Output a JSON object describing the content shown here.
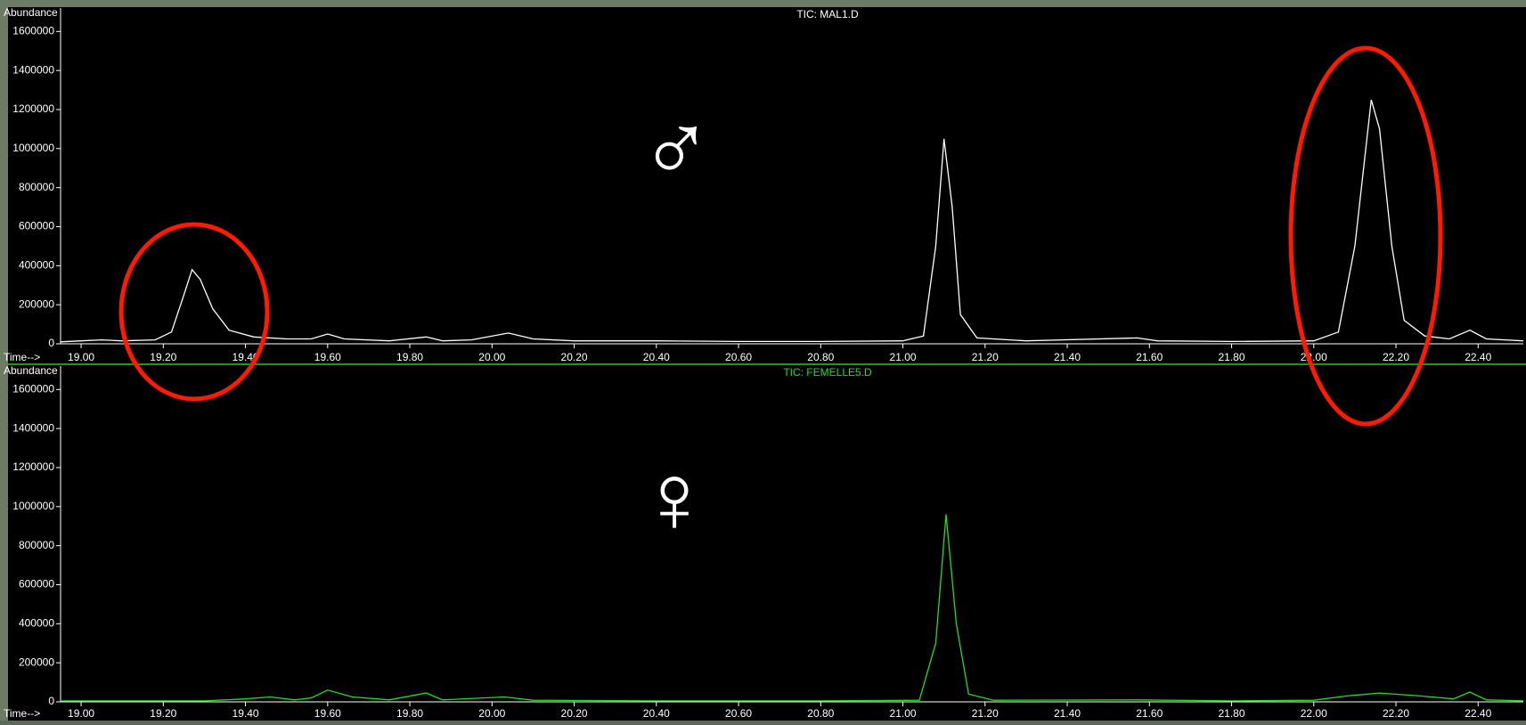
{
  "chart_data": [
    {
      "type": "line",
      "title": "TIC: MAL1.D",
      "y_label": "Abundance",
      "x_label": "Time-->",
      "annotation": "♂",
      "xlim": [
        18.95,
        22.51
      ],
      "ylim": [
        0,
        1720000
      ],
      "xticks": [
        {
          "value": 19,
          "label": "19.00"
        },
        {
          "value": 19.2,
          "label": "19.20"
        },
        {
          "value": 19.4,
          "label": "19.40"
        },
        {
          "value": 19.6,
          "label": "19.60"
        },
        {
          "value": 19.8,
          "label": "19.80"
        },
        {
          "value": 20,
          "label": "20.00"
        },
        {
          "value": 20.2,
          "label": "20.20"
        },
        {
          "value": 20.4,
          "label": "20.40"
        },
        {
          "value": 20.6,
          "label": "20.60"
        },
        {
          "value": 20.8,
          "label": "20.80"
        },
        {
          "value": 21,
          "label": "21.00"
        },
        {
          "value": 21.2,
          "label": "21.20"
        },
        {
          "value": 21.4,
          "label": "21.40"
        },
        {
          "value": 21.6,
          "label": "21.60"
        },
        {
          "value": 21.8,
          "label": "21.80"
        },
        {
          "value": 22,
          "label": "22.00"
        },
        {
          "value": 22.2,
          "label": "22.20"
        },
        {
          "value": 22.4,
          "label": "22.40"
        }
      ],
      "yticks": [
        0,
        200000,
        400000,
        600000,
        800000,
        1000000,
        1200000,
        1400000,
        1600000
      ],
      "series": [
        {
          "color": "#ffffff",
          "x": [
            18.95,
            19.0,
            19.05,
            19.1,
            19.18,
            19.22,
            19.25,
            19.27,
            19.29,
            19.32,
            19.36,
            19.42,
            19.5,
            19.56,
            19.6,
            19.64,
            19.75,
            19.84,
            19.88,
            19.95,
            20.04,
            20.1,
            20.2,
            20.4,
            20.6,
            20.8,
            21.0,
            21.05,
            21.08,
            21.1,
            21.12,
            21.14,
            21.18,
            21.3,
            21.57,
            21.62,
            21.8,
            22.0,
            22.06,
            22.1,
            22.14,
            22.16,
            22.19,
            22.22,
            22.27,
            22.33,
            22.38,
            22.42,
            22.51
          ],
          "values": [
            10000,
            15000,
            20000,
            15000,
            20000,
            60000,
            250000,
            380000,
            330000,
            180000,
            70000,
            35000,
            25000,
            25000,
            50000,
            25000,
            15000,
            35000,
            15000,
            20000,
            55000,
            25000,
            15000,
            15000,
            12000,
            12000,
            15000,
            40000,
            500000,
            1050000,
            700000,
            150000,
            30000,
            15000,
            30000,
            15000,
            12000,
            15000,
            60000,
            500000,
            1250000,
            1100000,
            500000,
            120000,
            40000,
            25000,
            70000,
            25000,
            15000
          ]
        }
      ]
    },
    {
      "type": "line",
      "title": "TIC: FEMELLE5.D",
      "y_label": "Abundance",
      "x_label": "Time-->",
      "annotation": "♀",
      "xlim": [
        18.95,
        22.51
      ],
      "ylim": [
        0,
        1720000
      ],
      "xticks": [
        {
          "value": 19,
          "label": "19.00"
        },
        {
          "value": 19.2,
          "label": "19.20"
        },
        {
          "value": 19.4,
          "label": "19.40"
        },
        {
          "value": 19.6,
          "label": "19.60"
        },
        {
          "value": 19.8,
          "label": "19.80"
        },
        {
          "value": 20,
          "label": "20.00"
        },
        {
          "value": 20.2,
          "label": "20.20"
        },
        {
          "value": 20.4,
          "label": "20.40"
        },
        {
          "value": 20.6,
          "label": "20.60"
        },
        {
          "value": 20.8,
          "label": "20.80"
        },
        {
          "value": 21,
          "label": "21.00"
        },
        {
          "value": 21.2,
          "label": "21.20"
        },
        {
          "value": 21.4,
          "label": "21.40"
        },
        {
          "value": 21.6,
          "label": "21.60"
        },
        {
          "value": 21.8,
          "label": "21.80"
        },
        {
          "value": 22,
          "label": "22.00"
        },
        {
          "value": 22.2,
          "label": "22.20"
        },
        {
          "value": 22.4,
          "label": "22.40"
        }
      ],
      "yticks": [
        0,
        200000,
        400000,
        600000,
        800000,
        1000000,
        1200000,
        1400000,
        1600000
      ],
      "series": [
        {
          "color": "#22dd22",
          "x": [
            18.95,
            19.3,
            19.4,
            19.46,
            19.52,
            19.56,
            19.6,
            19.66,
            19.75,
            19.84,
            19.88,
            20.03,
            20.1,
            20.4,
            20.8,
            21.04,
            21.08,
            21.105,
            21.13,
            21.16,
            21.22,
            21.57,
            21.8,
            22.0,
            22.08,
            22.16,
            22.26,
            22.34,
            22.38,
            22.42,
            22.51
          ],
          "values": [
            5000,
            5000,
            15000,
            25000,
            10000,
            20000,
            60000,
            25000,
            10000,
            45000,
            10000,
            25000,
            8000,
            5000,
            5000,
            8000,
            300000,
            960000,
            400000,
            40000,
            8000,
            10000,
            5000,
            8000,
            30000,
            45000,
            30000,
            15000,
            50000,
            10000,
            5000
          ]
        }
      ]
    }
  ]
}
